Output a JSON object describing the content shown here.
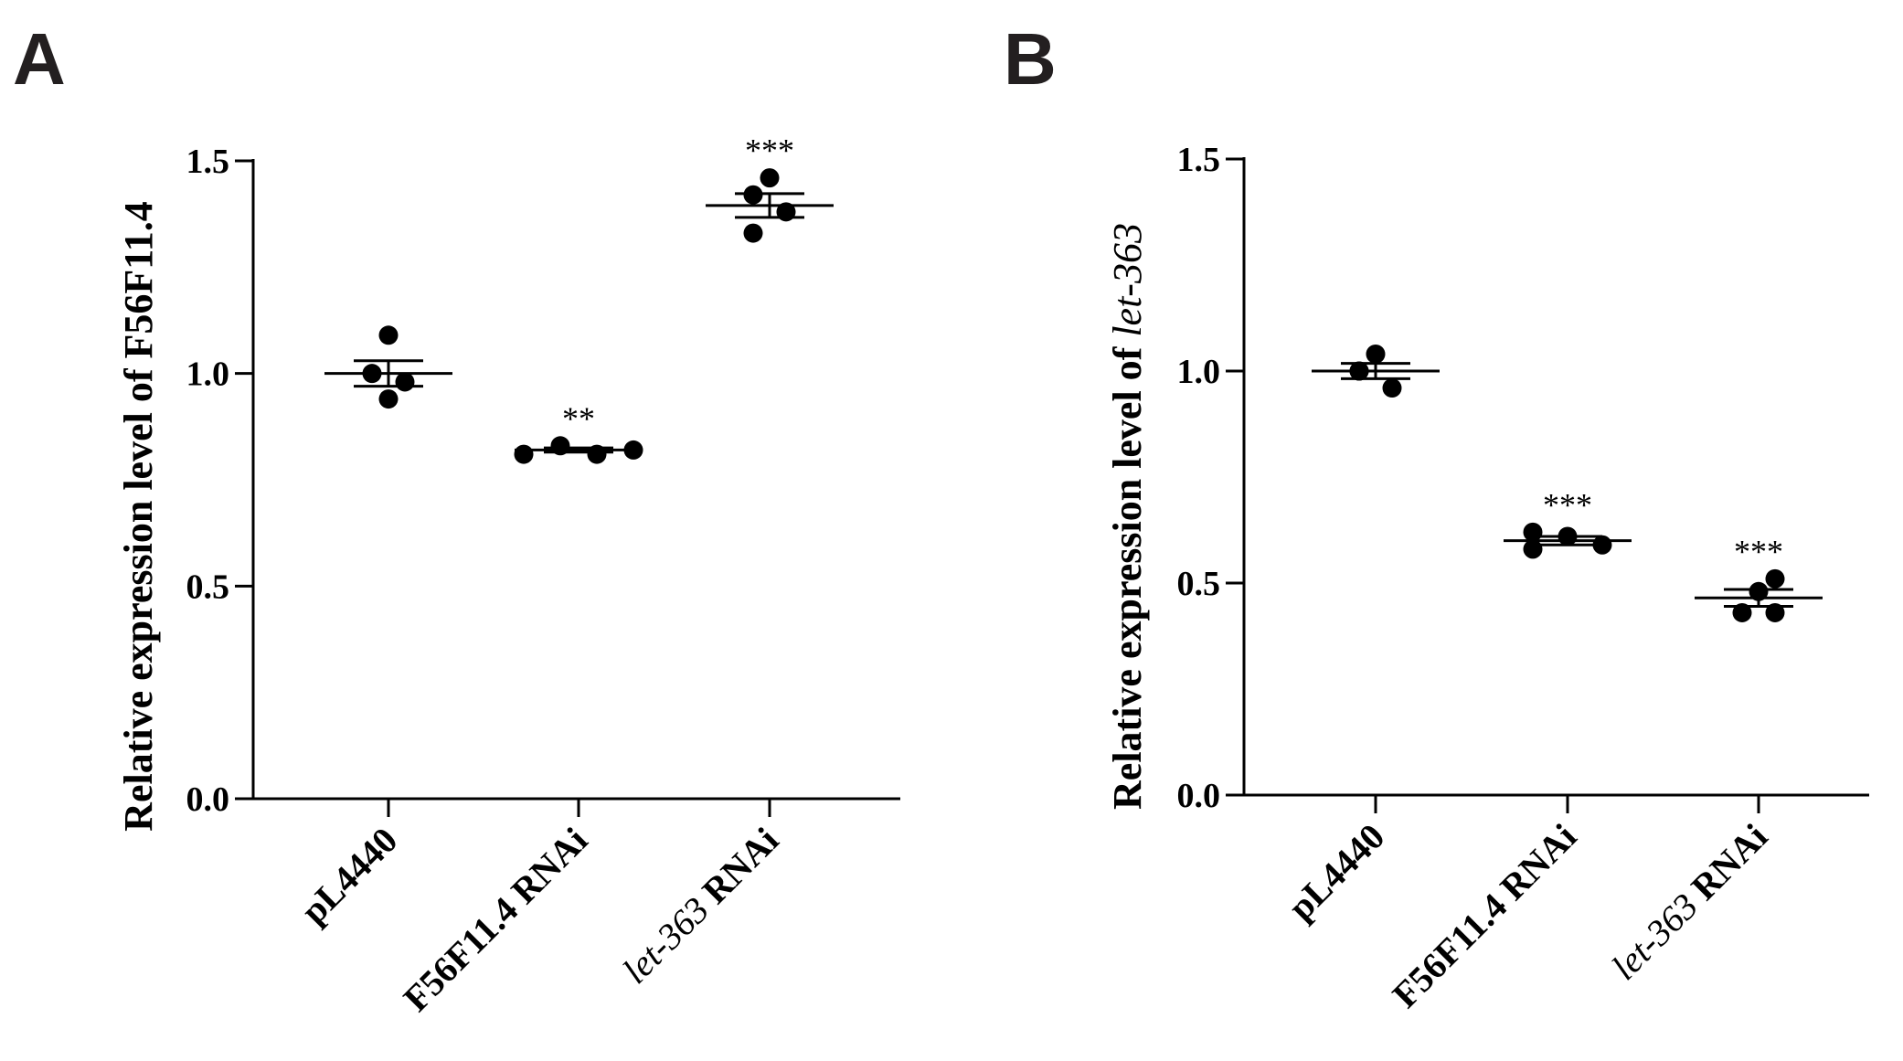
{
  "panels": [
    {
      "letter": "A",
      "ylabel_prefix": "Relative expression level of ",
      "ylabel_gene": "F56F11.4",
      "ylabel_gene_italic": false
    },
    {
      "letter": "B",
      "ylabel_prefix": "Relative expression level of ",
      "ylabel_gene": "let-363",
      "ylabel_gene_italic": true
    }
  ],
  "chart_data": [
    {
      "type": "scatter",
      "panel": "A",
      "title": "",
      "xlabel": "",
      "ylabel": "Relative expression level of F56F11.4",
      "ylim": [
        0.0,
        1.5
      ],
      "yticks": [
        "0.0",
        "0.5",
        "1.0",
        "1.5"
      ],
      "categories": [
        {
          "italic": "",
          "text": "pL4440"
        },
        {
          "italic": "",
          "text": "F56F11.4 RNAi"
        },
        {
          "italic": "let-363",
          "text": " RNAi"
        }
      ],
      "points": [
        [
          1.09,
          1.0,
          0.94,
          0.98
        ],
        [
          0.81,
          0.83,
          0.81,
          0.82
        ],
        [
          1.46,
          1.42,
          1.38,
          1.33
        ]
      ],
      "mean": [
        1.0,
        0.82,
        1.395
      ],
      "sem": [
        0.03,
        0.005,
        0.028
      ],
      "significance": [
        "",
        "**",
        "***"
      ]
    },
    {
      "type": "scatter",
      "panel": "B",
      "title": "",
      "xlabel": "",
      "ylabel": "Relative expression level of let-363",
      "ylim": [
        0.0,
        1.5
      ],
      "yticks": [
        "0.0",
        "0.5",
        "1.0",
        "1.5"
      ],
      "categories": [
        {
          "italic": "",
          "text": "pL4440"
        },
        {
          "italic": "",
          "text": "F56F11.4 RNAi"
        },
        {
          "italic": "let-363",
          "text": " RNAi"
        }
      ],
      "points": [
        [
          1.0,
          1.04,
          0.96,
          1.0
        ],
        [
          0.62,
          0.58,
          0.61,
          0.59
        ],
        [
          0.48,
          0.43,
          0.43,
          0.51
        ]
      ],
      "mean": [
        1.0,
        0.6,
        0.465
      ],
      "sem": [
        0.018,
        0.01,
        0.02
      ],
      "significance": [
        "",
        "***",
        "***"
      ]
    }
  ]
}
